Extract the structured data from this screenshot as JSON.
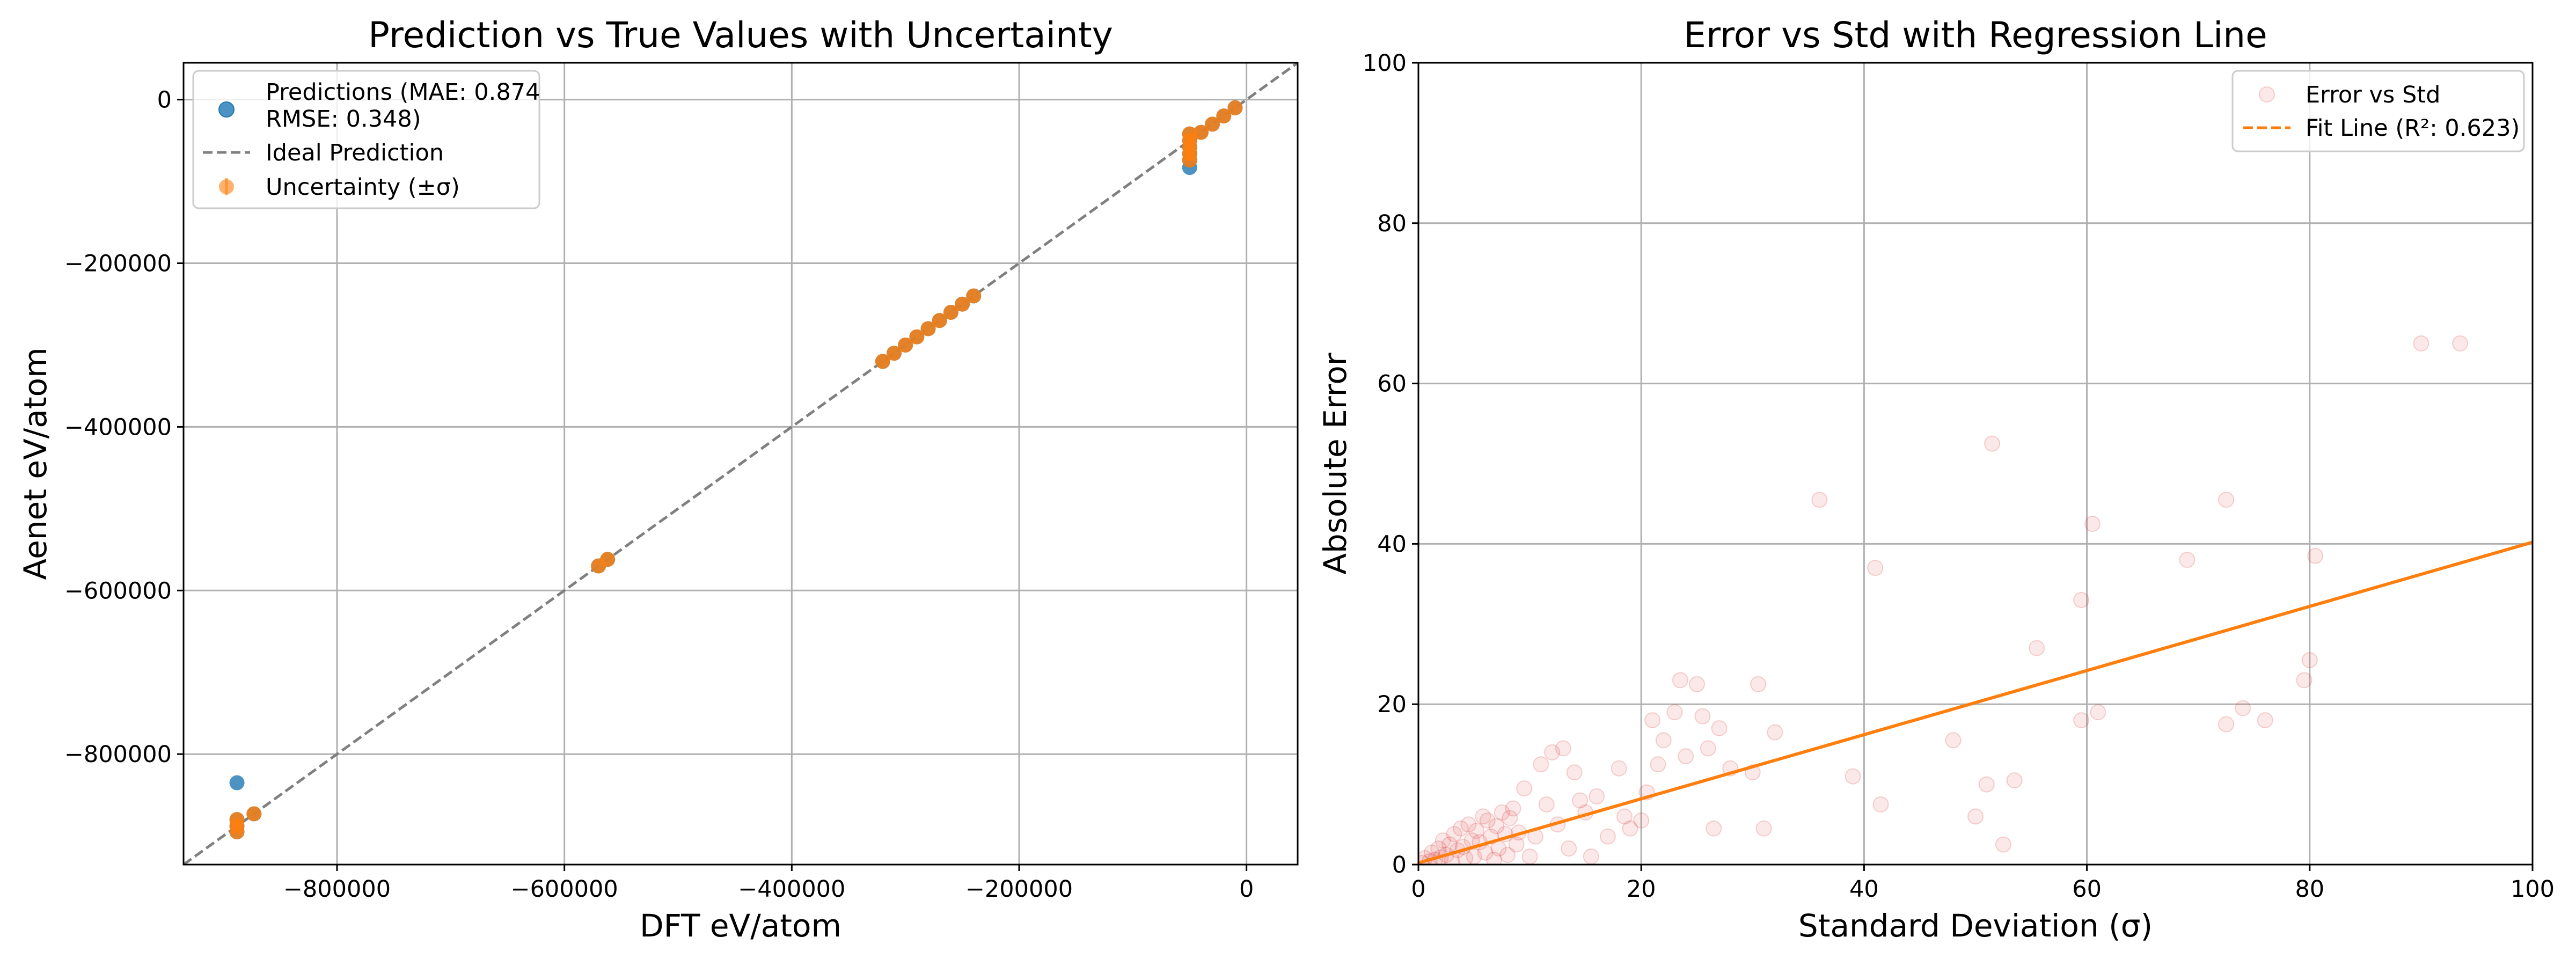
{
  "chart_data": [
    {
      "type": "scatter",
      "title": "Prediction vs True Values with Uncertainty",
      "xlabel": "DFT eV/atom",
      "ylabel": "Aenet eV/atom",
      "xlim": [
        -935000,
        45000
      ],
      "ylim": [
        -935000,
        45000
      ],
      "xticks": [
        -800000,
        -600000,
        -400000,
        -200000,
        0
      ],
      "xtick_labels": [
        "−800000",
        "−600000",
        "−400000",
        "−200000",
        "0"
      ],
      "yticks": [
        0,
        -200000,
        -400000,
        -600000,
        -800000
      ],
      "ytick_labels": [
        "0",
        "−200000",
        "−400000",
        "−600000",
        "−800000"
      ],
      "grid": true,
      "legend_position": "upper left",
      "legend": [
        {
          "label": "Predictions (MAE: 0.874",
          "label2": "RMSE: 0.348)",
          "marker": "circle",
          "color": "#1f77b4"
        },
        {
          "label": "Ideal Prediction",
          "marker": "dashed-line",
          "color": "#808080"
        },
        {
          "label": "Uncertainty (±σ)",
          "marker": "errorbar",
          "color": "#ff7f0e"
        }
      ],
      "series": [
        {
          "name": "Predictions (MAE: 0.874 RMSE: 0.348)",
          "color": "#1f77b4",
          "points": [
            [
              -888000,
              -888000
            ],
            [
              -888000,
              -895000
            ],
            [
              -888000,
              -880000
            ],
            [
              -888000,
              -835000
            ],
            [
              -873000,
              -873000
            ],
            [
              -570000,
              -570000
            ],
            [
              -562000,
              -562000
            ],
            [
              -320000,
              -320000
            ],
            [
              -310000,
              -310000
            ],
            [
              -300000,
              -300000
            ],
            [
              -290000,
              -290000
            ],
            [
              -280000,
              -280000
            ],
            [
              -270000,
              -270000
            ],
            [
              -260000,
              -260000
            ],
            [
              -250000,
              -250000
            ],
            [
              -240000,
              -240000
            ],
            [
              -50000,
              -42000
            ],
            [
              -50000,
              -50000
            ],
            [
              -50000,
              -58000
            ],
            [
              -50000,
              -66000
            ],
            [
              -50000,
              -74000
            ],
            [
              -50000,
              -83000
            ],
            [
              -40000,
              -40000
            ],
            [
              -30000,
              -30000
            ],
            [
              -20000,
              -20000
            ],
            [
              -10000,
              -10000
            ]
          ]
        },
        {
          "name": "Uncertainty (±σ)",
          "color": "#ff7f0e",
          "points": [
            [
              -888000,
              -888000
            ],
            [
              -888000,
              -895000
            ],
            [
              -888000,
              -880000
            ],
            [
              -873000,
              -873000
            ],
            [
              -570000,
              -570000
            ],
            [
              -562000,
              -562000
            ],
            [
              -320000,
              -320000
            ],
            [
              -310000,
              -310000
            ],
            [
              -300000,
              -300000
            ],
            [
              -290000,
              -290000
            ],
            [
              -280000,
              -280000
            ],
            [
              -270000,
              -270000
            ],
            [
              -260000,
              -260000
            ],
            [
              -250000,
              -250000
            ],
            [
              -240000,
              -240000
            ],
            [
              -50000,
              -42000
            ],
            [
              -50000,
              -50000
            ],
            [
              -50000,
              -58000
            ],
            [
              -50000,
              -66000
            ],
            [
              -50000,
              -74000
            ],
            [
              -40000,
              -40000
            ],
            [
              -30000,
              -30000
            ],
            [
              -20000,
              -20000
            ],
            [
              -10000,
              -10000
            ]
          ]
        },
        {
          "name": "Ideal Prediction",
          "type": "line",
          "color": "#808080",
          "points": [
            [
              -935000,
              -935000
            ],
            [
              45000,
              45000
            ]
          ]
        }
      ]
    },
    {
      "type": "scatter",
      "title": "Error vs Std with Regression Line",
      "xlabel": "Standard Deviation (σ)",
      "ylabel": "Absolute Error",
      "xlim": [
        0,
        100
      ],
      "ylim": [
        0,
        100
      ],
      "xticks": [
        0,
        20,
        40,
        60,
        80,
        100
      ],
      "xtick_labels": [
        "0",
        "20",
        "40",
        "60",
        "80",
        "100"
      ],
      "yticks": [
        0,
        20,
        40,
        60,
        80,
        100
      ],
      "ytick_labels": [
        "0",
        "20",
        "40",
        "60",
        "80",
        "100"
      ],
      "grid": true,
      "legend_position": "upper right",
      "legend": [
        {
          "label": "Error vs Std",
          "marker": "circle",
          "color": "#d62728"
        },
        {
          "label": "Fit Line (R²: 0.623)",
          "marker": "dashed-line",
          "color": "#ff7f0e"
        }
      ],
      "series": [
        {
          "name": "Error vs Std",
          "color": "#d62728",
          "points": [
            [
              0.3,
              0.2
            ],
            [
              0.6,
              0.8
            ],
            [
              1.0,
              0.4
            ],
            [
              1.2,
              1.5
            ],
            [
              1.5,
              0.6
            ],
            [
              1.8,
              2.0
            ],
            [
              2.0,
              0.9
            ],
            [
              2.2,
              3.0
            ],
            [
              2.5,
              1.2
            ],
            [
              2.8,
              2.5
            ],
            [
              3.0,
              0.5
            ],
            [
              3.2,
              3.8
            ],
            [
              3.5,
              1.8
            ],
            [
              3.8,
              4.5
            ],
            [
              4.0,
              2.2
            ],
            [
              4.2,
              0.8
            ],
            [
              4.5,
              5.0
            ],
            [
              4.8,
              3.0
            ],
            [
              5.0,
              1.0
            ],
            [
              5.2,
              4.2
            ],
            [
              5.5,
              2.8
            ],
            [
              5.8,
              6.0
            ],
            [
              6.0,
              1.5
            ],
            [
              6.2,
              5.5
            ],
            [
              6.5,
              3.5
            ],
            [
              6.8,
              0.6
            ],
            [
              7.0,
              4.8
            ],
            [
              7.2,
              2.0
            ],
            [
              7.5,
              6.5
            ],
            [
              7.8,
              3.8
            ],
            [
              8.0,
              1.2
            ],
            [
              8.2,
              5.8
            ],
            [
              8.5,
              7.0
            ],
            [
              8.8,
              2.5
            ],
            [
              9.0,
              4.0
            ],
            [
              9.5,
              9.5
            ],
            [
              10.0,
              1.0
            ],
            [
              10.5,
              3.5
            ],
            [
              11.0,
              12.5
            ],
            [
              11.5,
              7.5
            ],
            [
              12.0,
              14.0
            ],
            [
              12.5,
              5.0
            ],
            [
              13.0,
              14.5
            ],
            [
              13.5,
              2.0
            ],
            [
              14.0,
              11.5
            ],
            [
              14.5,
              8.0
            ],
            [
              15.0,
              6.5
            ],
            [
              15.5,
              1.0
            ],
            [
              16.0,
              8.5
            ],
            [
              17.0,
              3.5
            ],
            [
              18.0,
              12.0
            ],
            [
              18.5,
              6.0
            ],
            [
              19.0,
              4.5
            ],
            [
              20.0,
              5.5
            ],
            [
              20.5,
              9.0
            ],
            [
              21.0,
              18.0
            ],
            [
              21.5,
              12.5
            ],
            [
              22.0,
              15.5
            ],
            [
              23.0,
              19.0
            ],
            [
              23.5,
              23.0
            ],
            [
              24.0,
              13.5
            ],
            [
              25.0,
              22.5
            ],
            [
              25.5,
              18.5
            ],
            [
              26.0,
              14.5
            ],
            [
              26.5,
              4.5
            ],
            [
              27.0,
              17.0
            ],
            [
              28.0,
              12.0
            ],
            [
              30.0,
              11.5
            ],
            [
              30.5,
              22.5
            ],
            [
              31.0,
              4.5
            ],
            [
              32.0,
              16.5
            ],
            [
              36.0,
              45.5
            ],
            [
              39.0,
              11.0
            ],
            [
              41.0,
              37.0
            ],
            [
              41.5,
              7.5
            ],
            [
              48.0,
              15.5
            ],
            [
              50.0,
              6.0
            ],
            [
              51.0,
              10.0
            ],
            [
              51.5,
              52.5
            ],
            [
              52.5,
              2.5
            ],
            [
              53.5,
              10.5
            ],
            [
              55.5,
              27.0
            ],
            [
              59.5,
              18.0
            ],
            [
              59.5,
              33.0
            ],
            [
              60.5,
              42.5
            ],
            [
              61.0,
              19.0
            ],
            [
              69.0,
              38.0
            ],
            [
              72.5,
              45.5
            ],
            [
              72.5,
              17.5
            ],
            [
              74.0,
              19.5
            ],
            [
              76.0,
              18.0
            ],
            [
              79.5,
              23.0
            ],
            [
              80.0,
              25.5
            ],
            [
              80.5,
              38.5
            ],
            [
              90.0,
              65.0
            ],
            [
              93.5,
              65.0
            ]
          ]
        },
        {
          "name": "Fit Line (R²: 0.623)",
          "type": "line",
          "color": "#ff7f0e",
          "slope": 0.4,
          "intercept": 0.2
        }
      ]
    }
  ]
}
